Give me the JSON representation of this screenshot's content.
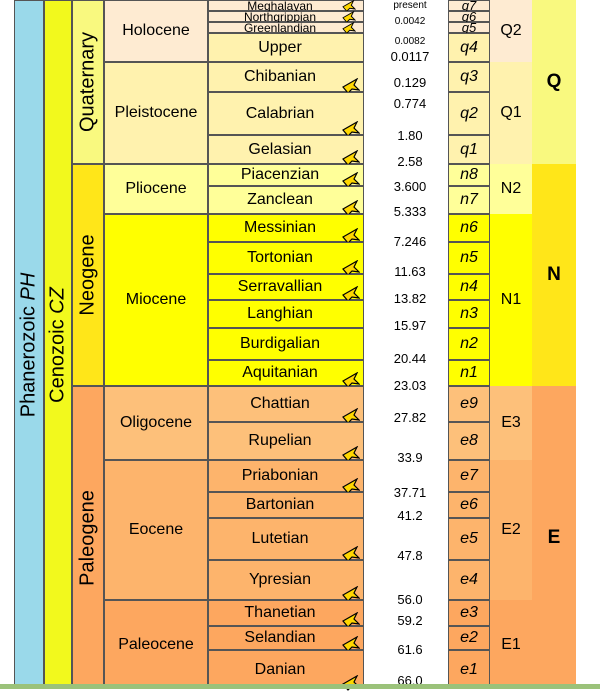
{
  "eon": {
    "label": "Phanerozoic",
    "abbr": "PH"
  },
  "era": {
    "label": "Cenozoic",
    "abbr": "CZ"
  },
  "periods": [
    "Quaternary",
    "Neogene",
    "Paleogene"
  ],
  "epochs": [
    "Holocene",
    "Pleistocene",
    "Pliocene",
    "Miocene",
    "Oligocene",
    "Eocene",
    "Paleocene"
  ],
  "stages": [
    "Meghalayan",
    "Northgrippian",
    "Greenlandian",
    "Upper",
    "Chibanian",
    "Calabrian",
    "Gelasian",
    "Piacenzian",
    "Zanclean",
    "Messinian",
    "Tortonian",
    "Serravallian",
    "Langhian",
    "Burdigalian",
    "Aquitanian",
    "Chattian",
    "Rupelian",
    "Priabonian",
    "Bartonian",
    "Lutetian",
    "Ypresian",
    "Thanetian",
    "Selandian",
    "Danian"
  ],
  "gssp_stages": [
    "Meghalayan",
    "Northgrippian",
    "Greenlandian",
    "Chibanian",
    "Calabrian",
    "Gelasian",
    "Piacenzian",
    "Zanclean",
    "Messinian",
    "Tortonian",
    "Serravallian",
    "Aquitanian",
    "Chattian",
    "Rupelian",
    "Priabonian",
    "Lutetian",
    "Ypresian",
    "Thanetian",
    "Selandian",
    "Danian"
  ],
  "ages": [
    "present",
    "0.0042",
    "0.0082",
    "0.0117",
    "0.129",
    "0.774",
    "1.80",
    "2.58",
    "3.600",
    "5.333",
    "7.246",
    "11.63",
    "13.82",
    "15.97",
    "20.44",
    "23.03",
    "27.82",
    "33.9",
    "37.71",
    "41.2",
    "47.8",
    "56.0",
    "59.2",
    "61.6",
    "66.0"
  ],
  "stage_codes": [
    "q7",
    "q6",
    "q5",
    "q4",
    "q3",
    "q2",
    "q1",
    "n8",
    "n7",
    "n6",
    "n5",
    "n4",
    "n3",
    "n2",
    "n1",
    "e9",
    "e8",
    "e7",
    "e6",
    "e5",
    "e4",
    "e3",
    "e2",
    "e1"
  ],
  "series_codes": [
    "Q2",
    "Q1",
    "N2",
    "N1",
    "E3",
    "E2",
    "E1"
  ],
  "system_codes": [
    "Q",
    "N",
    "E"
  ],
  "colors": {
    "eon": "#9AD9EA",
    "era": "#F2F91D",
    "quaternary": "#F9F97F",
    "neogene": "#FFE619",
    "paleogene": "#FDA75F",
    "holocene": "#FEEBD2",
    "pleistocene": "#FFF2AE",
    "pliocene": "#FFFF99",
    "miocene": "#FFFF00",
    "oligocene": "#FDC07A",
    "eocene": "#FDB46C",
    "paleocene": "#FDA75F",
    "gssp": "#FFD700"
  }
}
